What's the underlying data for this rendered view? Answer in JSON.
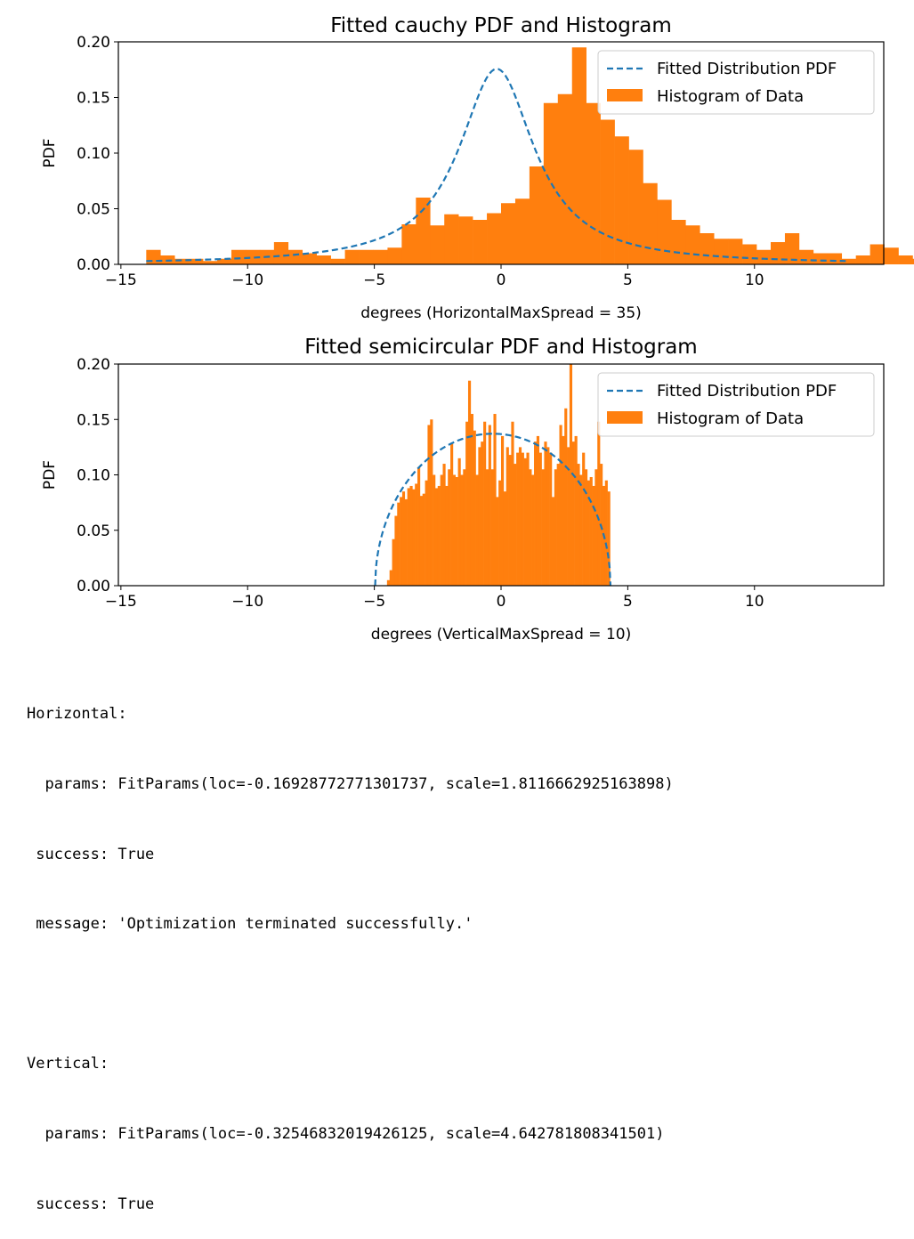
{
  "chart_data": [
    {
      "type": "bar",
      "title": "Fitted cauchy PDF and Histogram",
      "xlabel": "degrees (HorizontalMaxSpread = 35)",
      "ylabel": "PDF",
      "xlim": [
        -15.1,
        15.1
      ],
      "ylim": [
        0,
        0.2
      ],
      "xticks": [
        "−15",
        "−10",
        "−5",
        "0",
        "5",
        "10"
      ],
      "yticks": [
        "0.00",
        "0.05",
        "0.10",
        "0.15",
        "0.20"
      ],
      "legend": {
        "position": "top-right",
        "entries": [
          "Fitted Distribution PDF",
          "Histogram of Data"
        ]
      },
      "colors": {
        "histogram": "#ff7f0e",
        "fit": "#1f77b4"
      },
      "histogram": {
        "bin_start": -14.0,
        "bin_width": 0.56,
        "values": [
          0.013,
          0.008,
          0.005,
          0.005,
          0.003,
          0.005,
          0.013,
          0.013,
          0.013,
          0.02,
          0.013,
          0.01,
          0.008,
          0.005,
          0.013,
          0.013,
          0.013,
          0.015,
          0.036,
          0.06,
          0.035,
          0.045,
          0.043,
          0.04,
          0.046,
          0.055,
          0.059,
          0.088,
          0.145,
          0.153,
          0.195,
          0.145,
          0.13,
          0.115,
          0.103,
          0.073,
          0.058,
          0.04,
          0.035,
          0.028,
          0.023,
          0.023,
          0.018,
          0.013,
          0.02,
          0.028,
          0.013,
          0.01,
          0.01,
          0.005,
          0.008,
          0.018,
          0.015,
          0.008,
          0.005,
          0.005,
          0.003,
          0.003,
          0.003,
          0.003,
          0.003,
          0.003,
          0.003,
          0.003,
          0.003,
          0.003,
          0.003,
          0.003,
          0.003,
          0.005
        ]
      },
      "fit": {
        "distribution": "cauchy",
        "loc": -0.16928772771301737,
        "scale": 1.8116662925163898,
        "x_range": [
          -14.0,
          13.6
        ]
      }
    },
    {
      "type": "bar",
      "title": "Fitted semicircular PDF and Histogram",
      "xlabel": "degrees (VerticalMaxSpread = 10)",
      "ylabel": "PDF",
      "xlim": [
        -15.1,
        15.1
      ],
      "ylim": [
        0,
        0.2
      ],
      "xticks": [
        "−15",
        "−10",
        "−5",
        "0",
        "5",
        "10"
      ],
      "yticks": [
        "0.00",
        "0.05",
        "0.10",
        "0.15",
        "0.20"
      ],
      "legend": {
        "position": "top-right",
        "entries": [
          "Fitted Distribution PDF",
          "Histogram of Data"
        ]
      },
      "colors": {
        "histogram": "#ff7f0e",
        "fit": "#1f77b4"
      },
      "histogram": {
        "bin_start": -4.5,
        "bin_width": 0.1,
        "values": [
          0.005,
          0.014,
          0.042,
          0.063,
          0.075,
          0.08,
          0.085,
          0.078,
          0.088,
          0.09,
          0.087,
          0.092,
          0.107,
          0.081,
          0.083,
          0.095,
          0.145,
          0.15,
          0.1,
          0.088,
          0.09,
          0.1,
          0.11,
          0.09,
          0.105,
          0.128,
          0.1,
          0.098,
          0.115,
          0.1,
          0.105,
          0.148,
          0.185,
          0.155,
          0.14,
          0.1,
          0.125,
          0.13,
          0.148,
          0.105,
          0.145,
          0.105,
          0.155,
          0.08,
          0.095,
          0.135,
          0.085,
          0.125,
          0.118,
          0.148,
          0.11,
          0.12,
          0.125,
          0.12,
          0.115,
          0.12,
          0.105,
          0.1,
          0.13,
          0.135,
          0.12,
          0.105,
          0.13,
          0.125,
          0.12,
          0.08,
          0.105,
          0.11,
          0.145,
          0.135,
          0.16,
          0.125,
          0.2,
          0.13,
          0.135,
          0.11,
          0.1,
          0.12,
          0.105,
          0.095,
          0.098,
          0.09,
          0.105,
          0.148,
          0.11,
          0.09,
          0.095,
          0.085,
          0.08,
          0.08,
          0.072,
          0.065,
          0.055,
          0.042,
          0.04,
          0.025,
          0.015,
          0.01
        ],
        "x_max": 4.3
      },
      "fit": {
        "distribution": "semicircular",
        "loc": -0.32546832019426125,
        "scale": 4.642781808341501
      }
    }
  ],
  "output_lines": [
    "Horizontal:",
    "  params: FitParams(loc=-0.16928772771301737, scale=1.8116662925163898)",
    " success: True",
    " message: 'Optimization terminated successfully.'",
    "",
    "Vertical:",
    "  params: FitParams(loc=-0.32546832019426125, scale=4.642781808341501)",
    " success: True"
  ]
}
